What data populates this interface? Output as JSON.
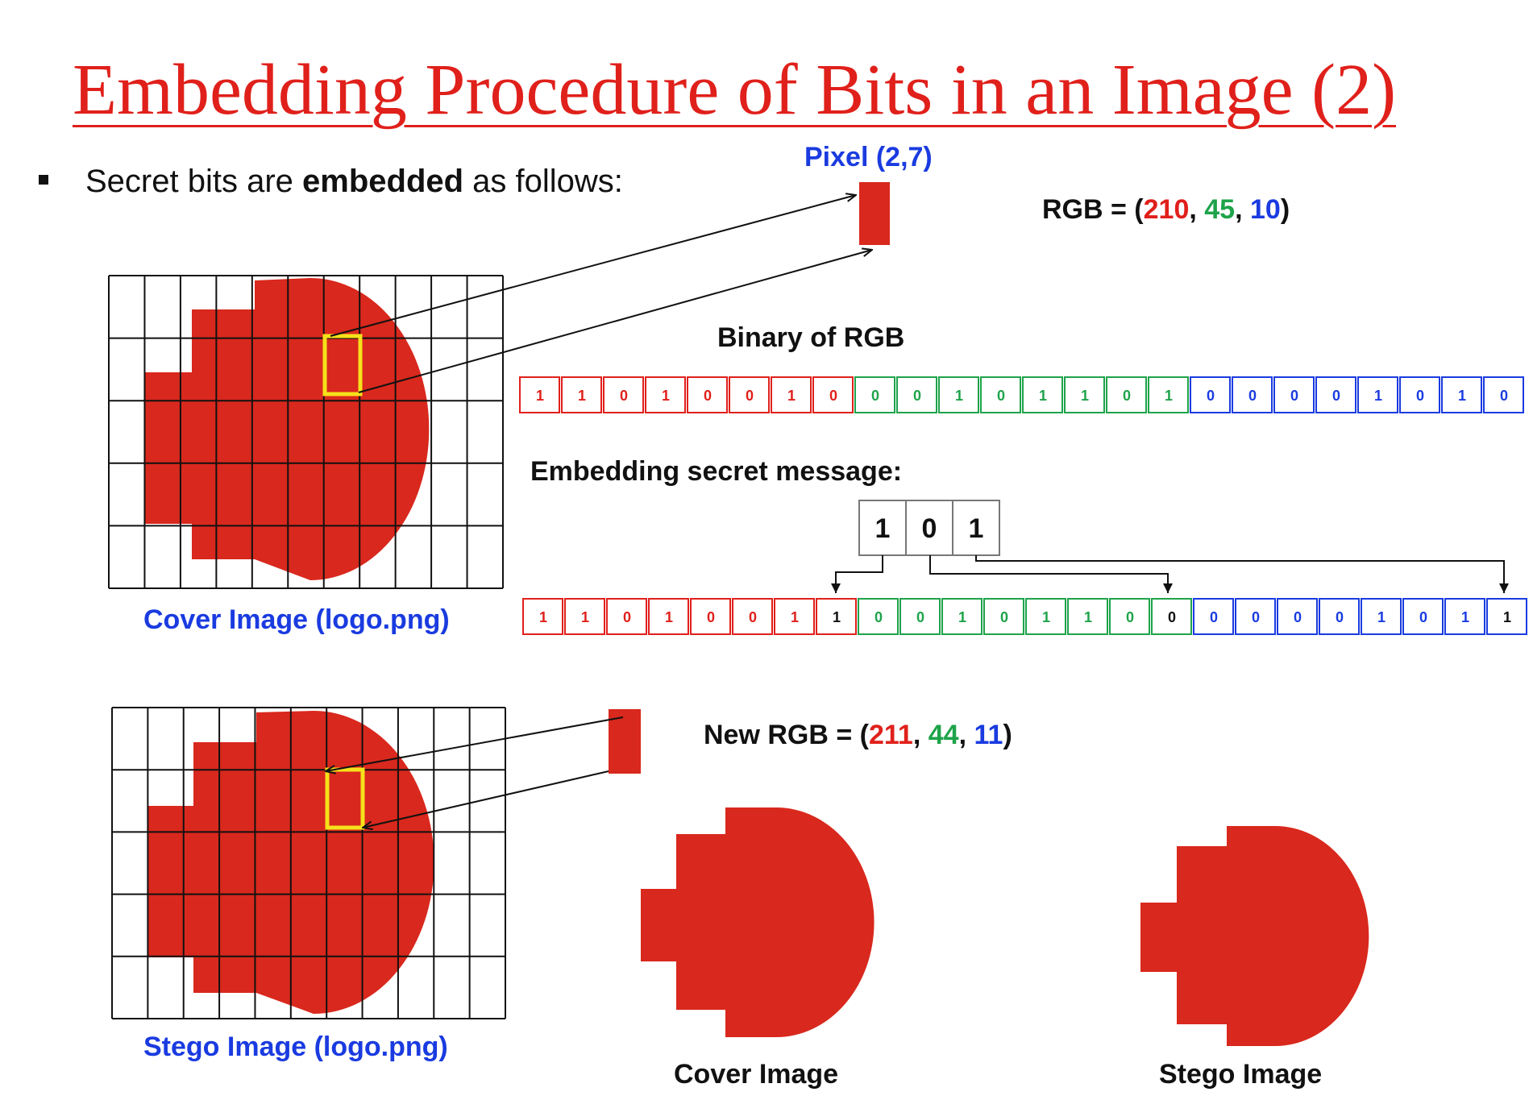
{
  "title": "Embedding Procedure of Bits in an Image (2)",
  "bullet": {
    "prefix": "Secret bits are ",
    "bold": "embedded",
    "suffix": " as follows:"
  },
  "pixel_label": "Pixel (2,7)",
  "rgb": {
    "prefix": "RGB = (",
    "r": "210",
    "g": "45",
    "b": "10",
    "sep": ", ",
    "close": ")"
  },
  "binary_heading": "Binary of RGB",
  "binary_bits": {
    "r": [
      "1",
      "1",
      "0",
      "1",
      "0",
      "0",
      "1",
      "0"
    ],
    "g": [
      "0",
      "0",
      "1",
      "0",
      "1",
      "1",
      "0",
      "1"
    ],
    "b": [
      "0",
      "0",
      "0",
      "0",
      "1",
      "0",
      "1",
      "0"
    ]
  },
  "embed_heading": "Embedding secret message:",
  "secret_bits": [
    "1",
    "0",
    "1"
  ],
  "new_bits": {
    "r": [
      "1",
      "1",
      "0",
      "1",
      "0",
      "0",
      "1",
      "1"
    ],
    "g": [
      "0",
      "0",
      "1",
      "0",
      "1",
      "1",
      "0",
      "0"
    ],
    "b": [
      "0",
      "0",
      "0",
      "0",
      "1",
      "0",
      "1",
      "1"
    ]
  },
  "new_rgb": {
    "prefix": "New RGB = (",
    "r": "211",
    "g": "44",
    "b": "11",
    "sep": ", ",
    "close": ")"
  },
  "captions": {
    "cover_grid": "Cover Image (logo.png)",
    "stego_grid": "Stego Image (logo.png)",
    "cover": "Cover Image",
    "stego": "Stego Image"
  },
  "colors": {
    "title": "#e0201b",
    "logo_red": "#d9281d",
    "label_blue": "#1a3be0",
    "bit_red": "#e0201b",
    "bit_green": "#1ea34a",
    "bit_blue": "#1a3be0",
    "highlight_yellow": "#f5e11a"
  }
}
